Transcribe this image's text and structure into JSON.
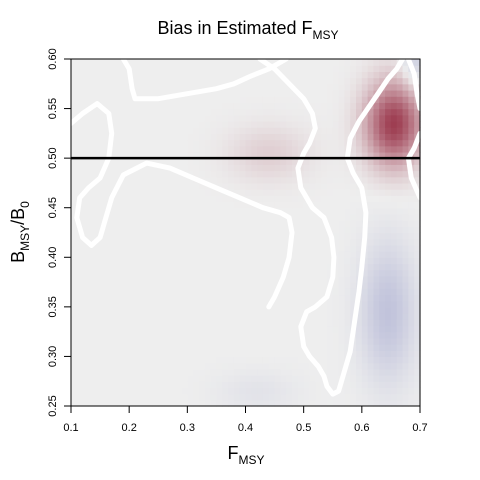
{
  "chart_data": {
    "type": "heatmap",
    "title": {
      "main": "Bias in Estimated F",
      "sub": "MSY"
    },
    "xlabel": {
      "main": "F",
      "sub": "MSY"
    },
    "ylabel": {
      "main1": "B",
      "sub1": "MSY",
      "sep": "/B",
      "sub2": "0"
    },
    "xlim": [
      0.1,
      0.7
    ],
    "ylim": [
      0.25,
      0.6
    ],
    "x_ticks": [
      "0.1",
      "0.2",
      "0.3",
      "0.4",
      "0.5",
      "0.6",
      "0.7"
    ],
    "y_ticks": [
      "0.25",
      "0.30",
      "0.35",
      "0.40",
      "0.45",
      "0.50",
      "0.55",
      "0.60"
    ],
    "reference_line": {
      "orientation": "horizontal",
      "y": 0.5,
      "color": "#000000"
    },
    "colors": {
      "positive": "#9e3e52",
      "negative": "#8a8fc4",
      "neutral": "#eeeeee",
      "contour": "#ffffff"
    },
    "hotspots": [
      {
        "sign": "positive",
        "x": 0.655,
        "y": 0.535,
        "sx": 0.035,
        "sy": 0.03,
        "amp": 1.0
      },
      {
        "sign": "positive",
        "x": 0.44,
        "y": 0.505,
        "sx": 0.05,
        "sy": 0.02,
        "amp": 0.18
      },
      {
        "sign": "negative",
        "x": 0.645,
        "y": 0.345,
        "sx": 0.035,
        "sy": 0.05,
        "amp": 0.45
      },
      {
        "sign": "negative",
        "x": 0.69,
        "y": 0.6,
        "sx": 0.015,
        "sy": 0.02,
        "amp": 0.35
      },
      {
        "sign": "negative",
        "x": 0.42,
        "y": 0.265,
        "sx": 0.05,
        "sy": 0.015,
        "amp": 0.12
      }
    ],
    "zero_contours": [
      [
        [
          0.1,
          0.535
        ],
        [
          0.12,
          0.545
        ],
        [
          0.145,
          0.555
        ],
        [
          0.165,
          0.545
        ],
        [
          0.17,
          0.525
        ],
        [
          0.165,
          0.5
        ],
        [
          0.15,
          0.48
        ],
        [
          0.13,
          0.47
        ],
        [
          0.115,
          0.46
        ],
        [
          0.11,
          0.44
        ],
        [
          0.12,
          0.42
        ],
        [
          0.135,
          0.412
        ],
        [
          0.15,
          0.42
        ],
        [
          0.16,
          0.44
        ],
        [
          0.17,
          0.46
        ],
        [
          0.19,
          0.483
        ],
        [
          0.23,
          0.495
        ],
        [
          0.27,
          0.49
        ],
        [
          0.31,
          0.48
        ],
        [
          0.35,
          0.47
        ],
        [
          0.39,
          0.46
        ],
        [
          0.43,
          0.45
        ],
        [
          0.46,
          0.445
        ],
        [
          0.475,
          0.44
        ],
        [
          0.48,
          0.425
        ],
        [
          0.475,
          0.4
        ],
        [
          0.465,
          0.38
        ],
        [
          0.45,
          0.36
        ],
        [
          0.44,
          0.35
        ]
      ],
      [
        [
          0.19,
          0.6
        ],
        [
          0.2,
          0.59
        ],
        [
          0.205,
          0.57
        ],
        [
          0.21,
          0.56
        ],
        [
          0.25,
          0.56
        ],
        [
          0.3,
          0.565
        ],
        [
          0.35,
          0.57
        ],
        [
          0.38,
          0.575
        ],
        [
          0.41,
          0.583
        ],
        [
          0.44,
          0.59
        ],
        [
          0.47,
          0.6
        ]
      ],
      [
        [
          0.425,
          0.6
        ],
        [
          0.45,
          0.59
        ],
        [
          0.475,
          0.575
        ],
        [
          0.5,
          0.56
        ],
        [
          0.515,
          0.545
        ],
        [
          0.52,
          0.53
        ],
        [
          0.51,
          0.515
        ],
        [
          0.5,
          0.505
        ],
        [
          0.49,
          0.49
        ],
        [
          0.495,
          0.47
        ],
        [
          0.515,
          0.45
        ],
        [
          0.535,
          0.44
        ],
        [
          0.548,
          0.42
        ],
        [
          0.552,
          0.4
        ],
        [
          0.55,
          0.38
        ],
        [
          0.54,
          0.36
        ],
        [
          0.52,
          0.35
        ],
        [
          0.505,
          0.345
        ],
        [
          0.495,
          0.33
        ],
        [
          0.5,
          0.31
        ],
        [
          0.51,
          0.3
        ],
        [
          0.525,
          0.29
        ],
        [
          0.535,
          0.28
        ],
        [
          0.54,
          0.27
        ],
        [
          0.55,
          0.262
        ],
        [
          0.56,
          0.265
        ],
        [
          0.57,
          0.285
        ],
        [
          0.58,
          0.305
        ],
        [
          0.585,
          0.325
        ],
        [
          0.59,
          0.345
        ],
        [
          0.595,
          0.365
        ],
        [
          0.6,
          0.39
        ],
        [
          0.605,
          0.42
        ],
        [
          0.607,
          0.445
        ],
        [
          0.6,
          0.47
        ],
        [
          0.585,
          0.485
        ],
        [
          0.575,
          0.5
        ],
        [
          0.58,
          0.52
        ],
        [
          0.595,
          0.537
        ],
        [
          0.61,
          0.55
        ],
        [
          0.63,
          0.567
        ],
        [
          0.645,
          0.58
        ],
        [
          0.66,
          0.59
        ],
        [
          0.67,
          0.6
        ]
      ],
      [
        [
          0.68,
          0.6
        ],
        [
          0.69,
          0.585
        ],
        [
          0.695,
          0.565
        ],
        [
          0.7,
          0.55
        ]
      ],
      [
        [
          0.7,
          0.525
        ],
        [
          0.69,
          0.51
        ],
        [
          0.68,
          0.5
        ],
        [
          0.685,
          0.48
        ],
        [
          0.7,
          0.46
        ]
      ]
    ]
  }
}
